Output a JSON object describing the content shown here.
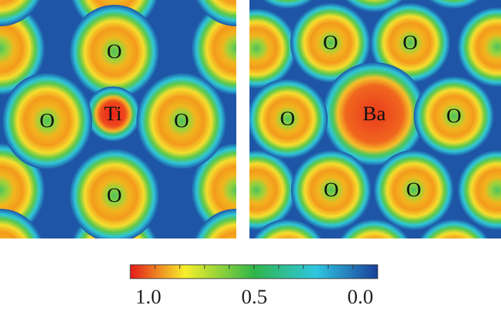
{
  "left_panel": {
    "atoms": [
      "O",
      "Ti",
      "O",
      "O",
      "O"
    ]
  },
  "right_panel": {
    "atoms": [
      "O",
      "O",
      "Ba",
      "O",
      "O",
      "O",
      "O"
    ]
  },
  "colorbar": {
    "tick_labels": [
      "1.0",
      "0.5",
      "0.0"
    ]
  }
}
